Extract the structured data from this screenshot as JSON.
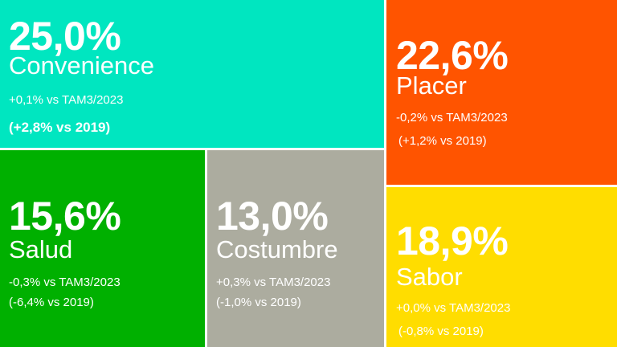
{
  "chart_data": {
    "type": "treemap",
    "unit": "%",
    "items": [
      {
        "key": "convenience",
        "category": "Convenience",
        "value_label": "25,0%",
        "value": 25.0,
        "change_tam": "+0,1% vs TAM3/2023",
        "change_2019": "(+2,8% vs 2019)",
        "color": "#00E6C0"
      },
      {
        "key": "placer",
        "category": "Placer",
        "value_label": "22,6%",
        "value": 22.6,
        "change_tam": "-0,2% vs TAM3/2023",
        "change_2019": "(+1,2% vs 2019)",
        "color": "#FF5400"
      },
      {
        "key": "salud",
        "category": "Salud",
        "value_label": "15,6%",
        "value": 15.6,
        "change_tam": "-0,3% vs TAM3/2023",
        "change_2019": "(-6,4% vs 2019)",
        "color": "#00B000"
      },
      {
        "key": "costumbre",
        "category": "Costumbre",
        "value_label": "13,0%",
        "value": 13.0,
        "change_tam": "+0,3% vs TAM3/2023",
        "change_2019": "(-1,0% vs 2019)",
        "color": "#ACAC9F"
      },
      {
        "key": "sabor",
        "category": "Sabor",
        "value_label": "18,9%",
        "value": 18.9,
        "change_tam": "+0,0% vs TAM3/2023",
        "change_2019": "(-0,8% vs 2019)",
        "color": "#FFDD00"
      }
    ]
  }
}
